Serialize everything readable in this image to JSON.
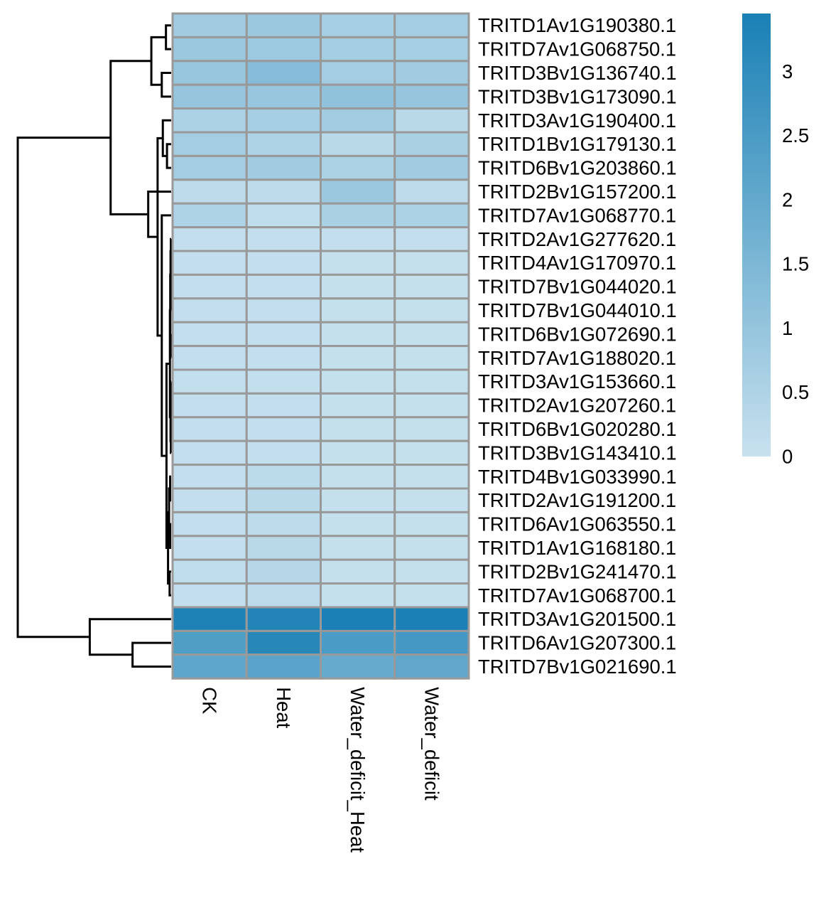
{
  "chart_data": {
    "type": "heatmap",
    "title": "",
    "xlabel": "",
    "ylabel": "",
    "columns": [
      "CK",
      "Heat",
      "Water_deficit_Heat",
      "Water_deficit"
    ],
    "rows": [
      "TRITD1Av1G190380.1",
      "TRITD7Av1G068750.1",
      "TRITD3Bv1G136740.1",
      "TRITD3Bv1G173090.1",
      "TRITD3Av1G190400.1",
      "TRITD1Bv1G179130.1",
      "TRITD6Bv1G203860.1",
      "TRITD2Bv1G157200.1",
      "TRITD7Av1G068770.1",
      "TRITD2Av1G277620.1",
      "TRITD4Av1G170970.1",
      "TRITD7Bv1G044020.1",
      "TRITD7Bv1G044010.1",
      "TRITD6Bv1G072690.1",
      "TRITD7Av1G188020.1",
      "TRITD3Av1G153660.1",
      "TRITD2Av1G207260.1",
      "TRITD6Bv1G020280.1",
      "TRITD3Bv1G143410.1",
      "TRITD4Bv1G033990.1",
      "TRITD2Av1G191200.1",
      "TRITD6Av1G063550.1",
      "TRITD1Av1G168180.1",
      "TRITD2Bv1G241470.1",
      "TRITD7Av1G068700.1",
      "TRITD3Av1G201500.1",
      "TRITD6Av1G207300.1",
      "TRITD7Bv1G021690.1"
    ],
    "values": [
      [
        0.8,
        0.9,
        0.65,
        0.7
      ],
      [
        0.9,
        0.85,
        0.7,
        0.65
      ],
      [
        0.95,
        1.3,
        0.7,
        0.8
      ],
      [
        1.0,
        0.95,
        1.1,
        1.0
      ],
      [
        0.55,
        0.65,
        0.75,
        0.3
      ],
      [
        0.7,
        0.5,
        0.3,
        0.6
      ],
      [
        0.7,
        0.8,
        0.55,
        0.8
      ],
      [
        0.2,
        0.2,
        0.9,
        0.2
      ],
      [
        0.5,
        0.15,
        0.6,
        0.55
      ],
      [
        0.1,
        0.1,
        0.1,
        0.1
      ],
      [
        0.1,
        0.1,
        0.05,
        0.05
      ],
      [
        0.1,
        0.1,
        0.05,
        0.05
      ],
      [
        0.1,
        0.1,
        0.05,
        0.05
      ],
      [
        0.1,
        0.1,
        0.05,
        0.05
      ],
      [
        0.1,
        0.1,
        0.05,
        0.05
      ],
      [
        0.1,
        0.1,
        0.05,
        0.05
      ],
      [
        0.1,
        0.1,
        0.05,
        0.05
      ],
      [
        0.1,
        0.1,
        0.05,
        0.05
      ],
      [
        0.1,
        0.1,
        0.05,
        0.05
      ],
      [
        0.1,
        0.25,
        0.05,
        0.05
      ],
      [
        0.1,
        0.3,
        0.05,
        0.05
      ],
      [
        0.1,
        0.2,
        0.05,
        0.05
      ],
      [
        0.1,
        0.3,
        0.05,
        0.05
      ],
      [
        0.15,
        0.35,
        0.05,
        0.05
      ],
      [
        0.1,
        0.2,
        0.05,
        0.05
      ],
      [
        3.4,
        3.3,
        3.45,
        3.45
      ],
      [
        2.4,
        3.2,
        2.5,
        2.6
      ],
      [
        2.1,
        2.2,
        1.95,
        2.05
      ]
    ],
    "color_scale": {
      "low": "#c8e1ee",
      "high": "#1a80b5",
      "min": 0,
      "max": 3.45,
      "ticks": [
        0,
        0.5,
        1,
        1.5,
        2,
        2.5,
        3
      ],
      "tick_labels": [
        "0",
        "0.5",
        "1",
        "1.5",
        "2",
        "2.5",
        "3"
      ]
    },
    "cell_border_color": "#999999",
    "dendrogram_color": "#000000",
    "row_dendrogram": {
      "merges": [
        [
          0,
          1,
          0.05
        ],
        [
          2,
          3,
          0.09
        ],
        [
          28,
          29,
          0.19
        ],
        [
          5,
          6,
          0.04
        ],
        [
          4,
          31,
          0.08
        ],
        [
          9,
          10,
          0.003
        ],
        [
          11,
          12,
          0.003
        ],
        [
          33,
          34,
          0.006
        ],
        [
          13,
          14,
          0.003
        ],
        [
          35,
          36,
          0.009
        ],
        [
          15,
          16,
          0.003
        ],
        [
          17,
          18,
          0.003
        ],
        [
          38,
          39,
          0.006
        ],
        [
          37,
          40,
          0.012
        ],
        [
          19,
          20,
          0.01
        ],
        [
          21,
          22,
          0.01
        ],
        [
          42,
          43,
          0.02
        ],
        [
          23,
          24,
          0.015
        ],
        [
          44,
          45,
          0.03
        ],
        [
          41,
          46,
          0.045
        ],
        [
          8,
          47,
          0.09
        ],
        [
          32,
          48,
          0.13
        ],
        [
          7,
          49,
          0.22
        ],
        [
          30,
          50,
          0.58
        ],
        [
          26,
          27,
          0.37
        ],
        [
          25,
          52,
          0.78
        ],
        [
          51,
          53,
          1.47
        ]
      ]
    }
  }
}
